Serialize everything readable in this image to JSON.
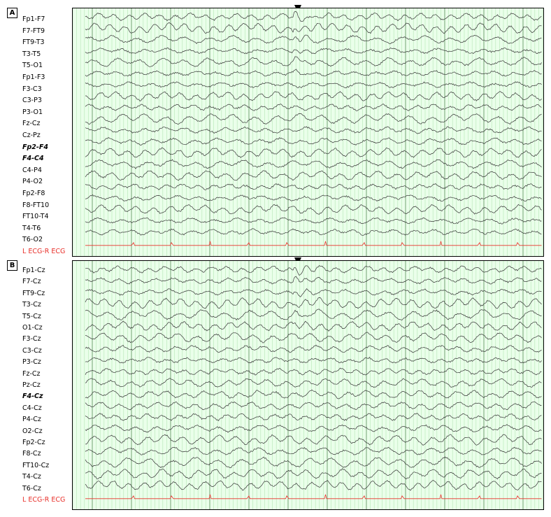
{
  "panels": [
    {
      "letter": "A",
      "channels": [
        {
          "label": "Fp1-F7",
          "style": "normal"
        },
        {
          "label": "F7-FT9",
          "style": "normal"
        },
        {
          "label": "FT9-T3",
          "style": "normal"
        },
        {
          "label": "T3-T5",
          "style": "normal"
        },
        {
          "label": "T5-O1",
          "style": "normal"
        },
        {
          "label": "Fp1-F3",
          "style": "normal"
        },
        {
          "label": "F3-C3",
          "style": "normal"
        },
        {
          "label": "C3-P3",
          "style": "normal"
        },
        {
          "label": "P3-O1",
          "style": "normal"
        },
        {
          "label": "Fz-Cz",
          "style": "normal"
        },
        {
          "label": "Cz-Pz",
          "style": "normal"
        },
        {
          "label": "Fp2-F4",
          "style": "bold-italic"
        },
        {
          "label": "F4-C4",
          "style": "bold-italic"
        },
        {
          "label": "C4-P4",
          "style": "normal"
        },
        {
          "label": "P4-O2",
          "style": "normal"
        },
        {
          "label": "Fp2-F8",
          "style": "normal"
        },
        {
          "label": "F8-FT10",
          "style": "normal"
        },
        {
          "label": "FT10-T4",
          "style": "normal"
        },
        {
          "label": "T4-T6",
          "style": "normal"
        },
        {
          "label": "T6-O2",
          "style": "normal"
        },
        {
          "label": "L ECG-R ECG",
          "style": "ecg"
        }
      ]
    },
    {
      "letter": "B",
      "channels": [
        {
          "label": "Fp1-Cz",
          "style": "normal"
        },
        {
          "label": "F7-Cz",
          "style": "normal"
        },
        {
          "label": "FT9-Cz",
          "style": "normal"
        },
        {
          "label": "T3-Cz",
          "style": "normal"
        },
        {
          "label": "T5-Cz",
          "style": "normal"
        },
        {
          "label": "O1-Cz",
          "style": "normal"
        },
        {
          "label": "F3-Cz",
          "style": "normal"
        },
        {
          "label": "C3-Cz",
          "style": "normal"
        },
        {
          "label": "P3-Cz",
          "style": "normal"
        },
        {
          "label": "Fz-Cz",
          "style": "normal"
        },
        {
          "label": "Pz-Cz",
          "style": "normal"
        },
        {
          "label": "F4-Cz",
          "style": "bold-italic"
        },
        {
          "label": "C4-Cz",
          "style": "normal"
        },
        {
          "label": "P4-Cz",
          "style": "normal"
        },
        {
          "label": "O2-Cz",
          "style": "normal"
        },
        {
          "label": "Fp2-Cz",
          "style": "normal"
        },
        {
          "label": "F8-Cz",
          "style": "normal"
        },
        {
          "label": "FT10-Cz",
          "style": "normal"
        },
        {
          "label": "T4-Cz",
          "style": "normal"
        },
        {
          "label": "T6-Cz",
          "style": "normal"
        },
        {
          "label": "L ECG-R ECG",
          "style": "ecg"
        }
      ]
    }
  ],
  "chart_data": {
    "type": "line",
    "description_type": "EEG multichannel trace",
    "grid": true,
    "colors": {
      "background": "#eaffea",
      "grid": "#b6e6b6",
      "trace": "#333333",
      "ecg": "#e8302a",
      "marker": "#000000"
    }
  }
}
